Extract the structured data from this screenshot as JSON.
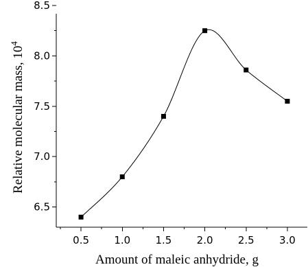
{
  "chart_data": {
    "type": "line",
    "xlabel": "Amount of maleic anhydride, g",
    "ylabel": "Relative molecular mass, 10",
    "ylabel_superscript": "4",
    "xlim": [
      0.2,
      3.25
    ],
    "ylim": [
      6.3,
      8.5
    ],
    "x_ticks": [
      "0.5",
      "1.0",
      "1.5",
      "2.0",
      "2.5",
      "3.0"
    ],
    "y_ticks": [
      "6.5",
      "7.0",
      "7.5",
      "8.0",
      "8.5"
    ],
    "x": [
      0.5,
      1.0,
      1.5,
      2.0,
      2.5,
      3.0
    ],
    "y": [
      6.4,
      6.8,
      7.4,
      8.25,
      7.86,
      7.55
    ],
    "grid": false,
    "line_color": "#000000",
    "marker": "square"
  }
}
